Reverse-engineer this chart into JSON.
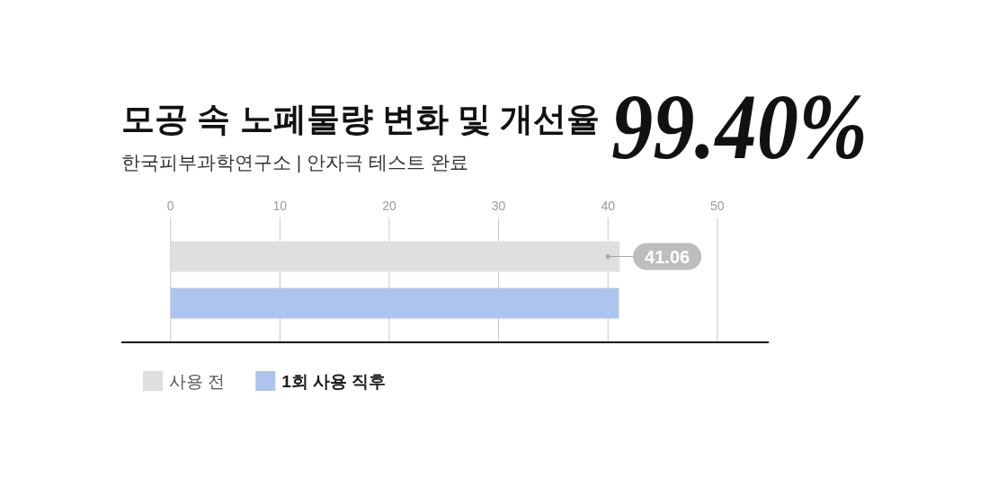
{
  "chart_data": {
    "type": "bar",
    "orientation": "horizontal",
    "title": "모공 속 노폐물량 변화 및 개선율",
    "subtitle": "한국피부과학연구소 | 안자극 테스트 완료",
    "annotations": [
      "99.40%"
    ],
    "categories": [
      null
    ],
    "series": [
      {
        "name": "사용 전",
        "color": "#dfdfdf",
        "values": [
          41.06
        ],
        "value_labels": [
          "41.06"
        ]
      },
      {
        "name": "1회 사용 직후",
        "color": "#adc4ee",
        "values": [
          41
        ]
      }
    ],
    "xlim": [
      -4.5,
      54.7
    ],
    "xticks": [
      0,
      10,
      20,
      30,
      40,
      50
    ],
    "grid": "x",
    "legend": "bottom left"
  }
}
